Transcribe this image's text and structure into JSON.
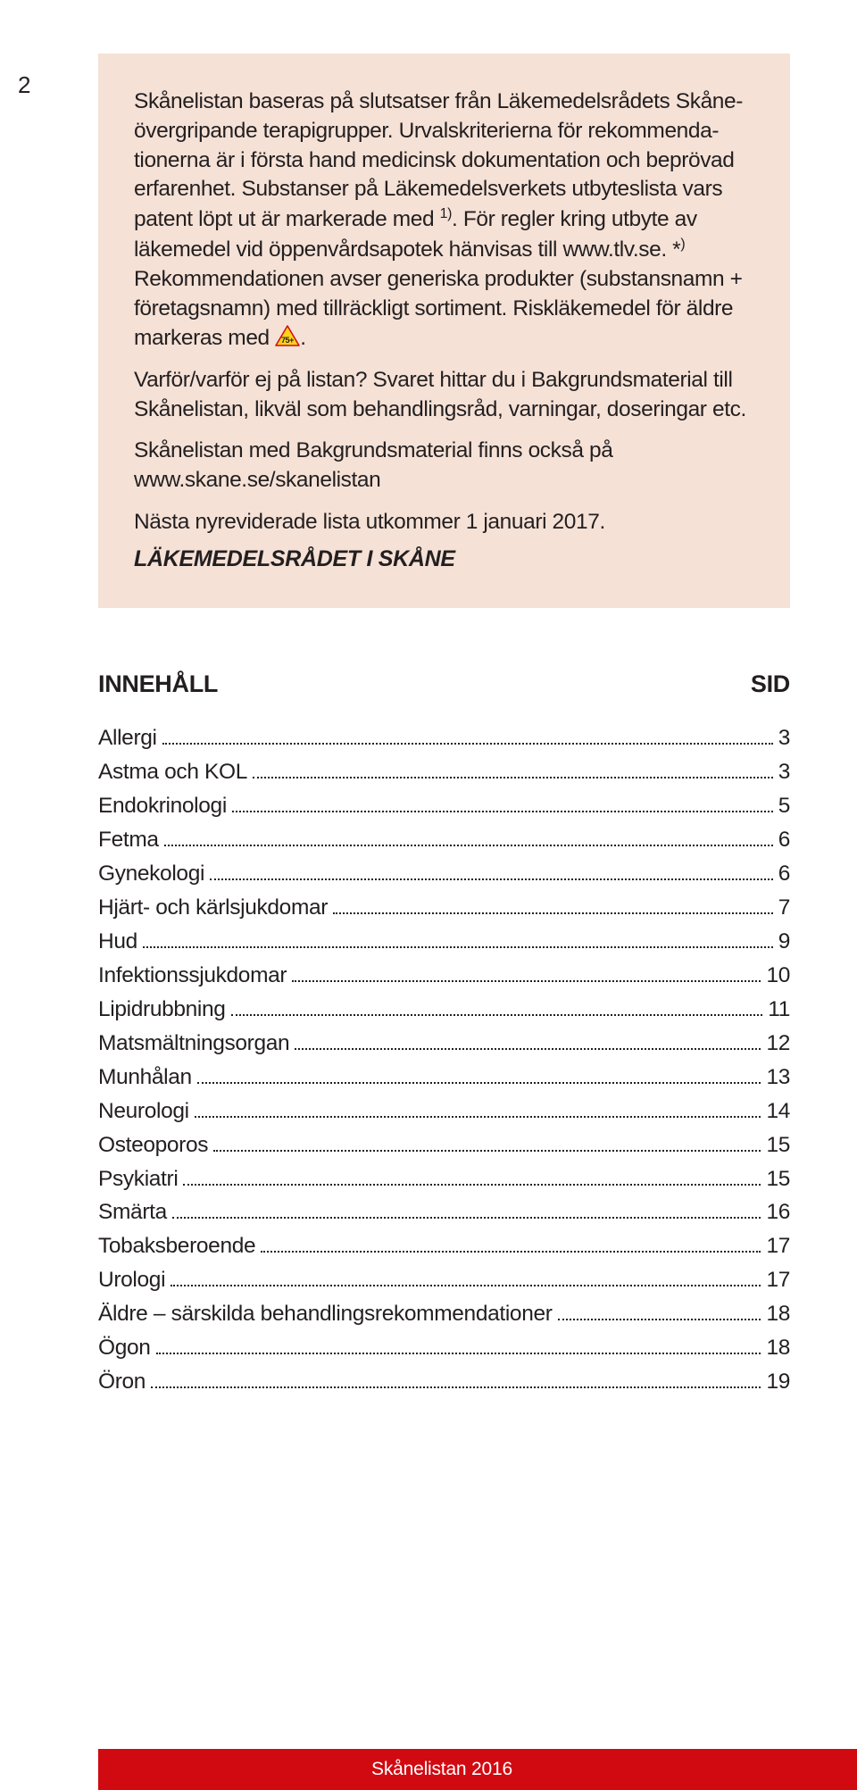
{
  "page_number": "2",
  "intro": {
    "p1_a": "Skånelistan baseras på slutsatser från Läkemedelsrådets Skåne­övergripande terapigrupper. Urvalskriterierna för rekommenda­tionerna är i första hand medicinsk dokumentation och beprövad erfarenhet. Substanser på Läkemedelsverkets utbyteslista vars patent löpt ut är markerade med ",
    "sup1": "1)",
    "p1_b": ". För regler kring utbyte av läkemedel vid öppen­vårdsapotek hänvisas till www.tlv.se. *",
    "sup2": ")",
    "p1_c": " Rekommendationen avser generiska produkter (substansnamn + företagsnamn) med tillräck­ligt sortiment. Riskläkemedel för äldre markeras med ",
    "p1_d": ".",
    "p2": "Varför/varför ej på listan? Svaret hittar du i Bakgrundsmaterial till Skånelistan, likväl som behandlingsråd, varningar, doseringar etc.",
    "p3_a": "Skånelistan med Bakgrundsmaterial finns också på",
    "p3_b": "www.skane.se/skanelistan",
    "p4": "Nästa nyreviderade lista utkommer 1 januari 2017.",
    "council": "LÄKEMEDELSRÅDET I SKÅNE"
  },
  "triangle": {
    "fill": "#fcd21c",
    "stroke": "#d10a11",
    "text": "75+",
    "text_color": "#231f20"
  },
  "toc": {
    "head_left": "INNEHÅLL",
    "head_right": "SID",
    "rows": [
      {
        "label": "Allergi",
        "page": "3"
      },
      {
        "label": "Astma och KOL",
        "page": "3"
      },
      {
        "label": "Endokrinologi",
        "page": "5"
      },
      {
        "label": "Fetma",
        "page": "6"
      },
      {
        "label": "Gynekologi",
        "page": "6"
      },
      {
        "label": "Hjärt- och kärlsjukdomar",
        "page": "7"
      },
      {
        "label": "Hud",
        "page": "9"
      },
      {
        "label": "Infektionssjukdomar",
        "page": "10"
      },
      {
        "label": "Lipidrubbning",
        "page": "11"
      },
      {
        "label": "Matsmältningsorgan",
        "page": "12"
      },
      {
        "label": "Munhålan",
        "page": "13"
      },
      {
        "label": "Neurologi",
        "page": "14"
      },
      {
        "label": "Osteoporos",
        "page": "15"
      },
      {
        "label": "Psykiatri",
        "page": "15"
      },
      {
        "label": "Smärta",
        "page": "16"
      },
      {
        "label": "Tobaksberoende",
        "page": "17"
      },
      {
        "label": "Urologi",
        "page": "17"
      },
      {
        "label": "Äldre – särskilda behandlingsrekommendationer",
        "page": "18"
      },
      {
        "label": "Ögon",
        "page": "18"
      },
      {
        "label": "Öron",
        "page": "19"
      }
    ]
  },
  "footer": "Skånelistan 2016",
  "colors": {
    "intro_bg": "#f5e1d6",
    "accent": "#d10a11",
    "text": "#231f20"
  }
}
